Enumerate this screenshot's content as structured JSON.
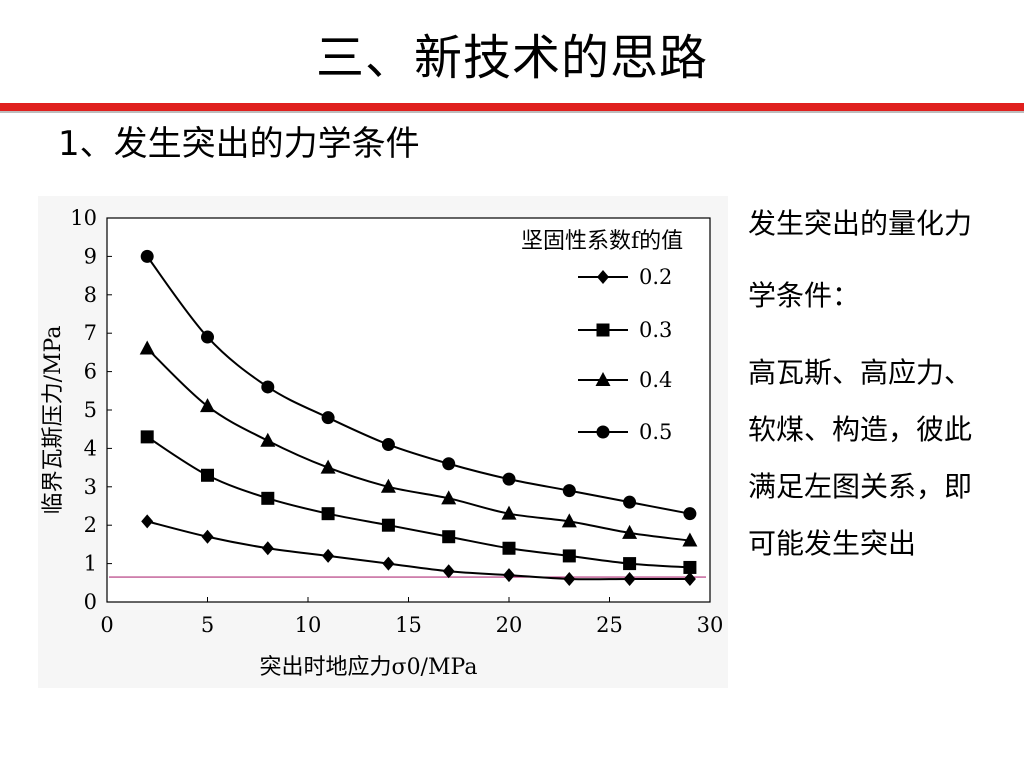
{
  "slide": {
    "title": "三、新技术的思路",
    "subtitle": "1、发生突出的力学条件",
    "side_text_1": "发生突出的量化力学条件：",
    "side_text_2": "高瓦斯、高应力、软煤、构造，彼此满足左图关系，即可能发生突出"
  },
  "colors": {
    "accent_red": "#e0201e",
    "threshold_line": "#b0307a"
  },
  "chart_data": {
    "type": "line",
    "xlabel": "突出时地应力σ0/MPa",
    "ylabel": "临界瓦斯压力/MPa",
    "legend_title": "坚固性系数f的值",
    "legend_position": "top-right",
    "xlim": [
      0,
      30
    ],
    "ylim": [
      0,
      10
    ],
    "x_ticks": [
      "0",
      "5",
      "10",
      "15",
      "20",
      "25",
      "30"
    ],
    "y_ticks": [
      "0",
      "1",
      "2",
      "3",
      "4",
      "5",
      "6",
      "7",
      "8",
      "9",
      "10"
    ],
    "x": [
      2,
      5,
      8,
      11,
      14,
      17,
      20,
      23,
      26,
      29
    ],
    "series": [
      {
        "name": "0.2",
        "marker": "diamond",
        "values": [
          2.1,
          1.7,
          1.4,
          1.2,
          1.0,
          0.8,
          0.7,
          0.6,
          0.6,
          0.6
        ]
      },
      {
        "name": "0.3",
        "marker": "square",
        "values": [
          4.3,
          3.3,
          2.7,
          2.3,
          2.0,
          1.7,
          1.4,
          1.2,
          1.0,
          0.9
        ]
      },
      {
        "name": "0.4",
        "marker": "triangle",
        "values": [
          6.6,
          5.1,
          4.2,
          3.5,
          3.0,
          2.7,
          2.3,
          2.1,
          1.8,
          1.6
        ]
      },
      {
        "name": "0.5",
        "marker": "circle",
        "values": [
          9.0,
          6.9,
          5.6,
          4.8,
          4.1,
          3.6,
          3.2,
          2.9,
          2.6,
          2.3
        ]
      }
    ],
    "threshold_line_value": 0.65,
    "grid": false
  }
}
